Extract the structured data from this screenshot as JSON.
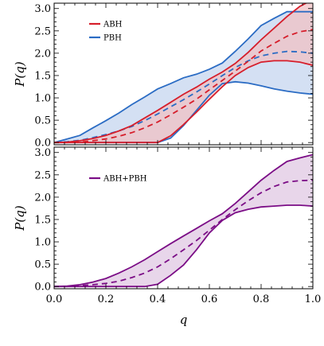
{
  "chart_data": [
    {
      "type": "line",
      "xlabel": "",
      "ylabel": "P(q)",
      "xlim": [
        0,
        1
      ],
      "ylim": [
        -0.05,
        3.12
      ],
      "xticks": [
        "0.0",
        "0.2",
        "0.4",
        "0.6",
        "0.8",
        "1.0"
      ],
      "yticks": [
        "0.0",
        "0.5",
        "1.0",
        "1.5",
        "2.0",
        "2.5",
        "3.0"
      ],
      "legend_position": "top-left",
      "series": [
        {
          "name": "PBH",
          "color": "#2b6cc4",
          "fill": "#c5d6ef",
          "x": [
            0,
            0.05,
            0.1,
            0.15,
            0.2,
            0.25,
            0.3,
            0.35,
            0.4,
            0.45,
            0.5,
            0.55,
            0.6,
            0.65,
            0.7,
            0.75,
            0.8,
            0.85,
            0.9,
            0.95,
            1.0
          ],
          "upper": [
            0.0,
            0.08,
            0.16,
            0.33,
            0.49,
            0.66,
            0.85,
            1.02,
            1.2,
            1.32,
            1.45,
            1.53,
            1.64,
            1.78,
            2.04,
            2.32,
            2.62,
            2.78,
            2.93,
            2.93,
            2.93
          ],
          "median": [
            0.0,
            0.02,
            0.05,
            0.11,
            0.18,
            0.26,
            0.36,
            0.49,
            0.64,
            0.8,
            0.96,
            1.13,
            1.31,
            1.5,
            1.68,
            1.83,
            1.94,
            2.0,
            2.04,
            2.03,
            2.0
          ],
          "lower": [
            0.0,
            0.0,
            0.0,
            0.0,
            0.0,
            0.0,
            0.0,
            0.0,
            0.0,
            0.1,
            0.38,
            0.72,
            1.06,
            1.32,
            1.36,
            1.33,
            1.27,
            1.2,
            1.15,
            1.11,
            1.08
          ]
        },
        {
          "name": "ABH",
          "color": "#d61e2b",
          "fill": "#f0c2c4",
          "x": [
            0,
            0.05,
            0.1,
            0.15,
            0.2,
            0.25,
            0.3,
            0.35,
            0.4,
            0.45,
            0.5,
            0.55,
            0.6,
            0.65,
            0.7,
            0.75,
            0.8,
            0.85,
            0.9,
            0.95,
            1.0
          ],
          "upper": [
            0.0,
            0.01,
            0.04,
            0.09,
            0.16,
            0.26,
            0.38,
            0.55,
            0.72,
            0.9,
            1.08,
            1.24,
            1.42,
            1.58,
            1.77,
            2.02,
            2.3,
            2.56,
            2.82,
            3.05,
            3.2
          ],
          "median": [
            0.0,
            0.0,
            0.01,
            0.04,
            0.08,
            0.14,
            0.22,
            0.33,
            0.46,
            0.62,
            0.79,
            0.97,
            1.18,
            1.39,
            1.6,
            1.82,
            2.05,
            2.22,
            2.38,
            2.48,
            2.53
          ],
          "lower": [
            0.0,
            0.0,
            0.0,
            0.0,
            0.0,
            0.0,
            0.0,
            0.0,
            0.0,
            0.15,
            0.4,
            0.68,
            0.97,
            1.25,
            1.5,
            1.68,
            1.8,
            1.83,
            1.83,
            1.8,
            1.73
          ]
        }
      ]
    },
    {
      "type": "line",
      "xlabel": "q",
      "ylabel": "P(q)",
      "xlim": [
        0,
        1
      ],
      "ylim": [
        -0.05,
        3.12
      ],
      "xticks": [
        "0.0",
        "0.2",
        "0.4",
        "0.6",
        "0.8",
        "1.0"
      ],
      "yticks": [
        "0.0",
        "0.5",
        "1.0",
        "1.5",
        "2.0",
        "2.5",
        "3.0"
      ],
      "legend_position": "top-left",
      "series": [
        {
          "name": "ABH+PBH",
          "color": "#7b0d86",
          "fill": "#e0c8e3",
          "x": [
            0,
            0.05,
            0.1,
            0.15,
            0.2,
            0.25,
            0.3,
            0.35,
            0.4,
            0.45,
            0.5,
            0.55,
            0.6,
            0.65,
            0.7,
            0.75,
            0.8,
            0.85,
            0.9,
            0.95,
            1.0
          ],
          "upper": [
            0.0,
            0.01,
            0.04,
            0.1,
            0.18,
            0.3,
            0.44,
            0.6,
            0.78,
            0.96,
            1.13,
            1.3,
            1.47,
            1.63,
            1.86,
            2.12,
            2.38,
            2.6,
            2.8,
            2.88,
            2.95
          ],
          "median": [
            0.0,
            0.0,
            0.02,
            0.04,
            0.07,
            0.12,
            0.2,
            0.3,
            0.44,
            0.62,
            0.82,
            1.03,
            1.26,
            1.5,
            1.72,
            1.92,
            2.1,
            2.24,
            2.34,
            2.37,
            2.38
          ],
          "lower": [
            0.0,
            0.0,
            0.0,
            0.0,
            0.0,
            0.0,
            0.0,
            0.0,
            0.05,
            0.25,
            0.48,
            0.82,
            1.2,
            1.48,
            1.65,
            1.73,
            1.78,
            1.8,
            1.82,
            1.82,
            1.8
          ]
        }
      ]
    }
  ]
}
